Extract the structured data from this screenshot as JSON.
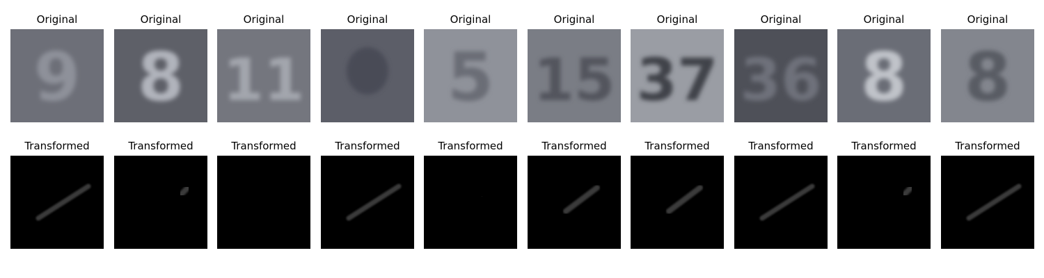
{
  "rows": [
    {
      "label": "Original",
      "panels": [
        {
          "digits": "9",
          "bg": "#6d6f78",
          "fg": "#8e919a"
        },
        {
          "digits": "8",
          "bg": "#5e6068",
          "fg": "#b1b4bc"
        },
        {
          "digits": "11",
          "bg": "#74767e",
          "fg": "#a3a6ad"
        },
        {
          "digits": "",
          "bg": "#5c5e68",
          "fg": "#4a4c56"
        },
        {
          "digits": "5",
          "bg": "#8f929a",
          "fg": "#6a6d76"
        },
        {
          "digits": "15",
          "bg": "#7a7d85",
          "fg": "#52555d"
        },
        {
          "digits": "37",
          "bg": "#9a9da4",
          "fg": "#3f4249"
        },
        {
          "digits": "36",
          "bg": "#4e5058",
          "fg": "#6e717a"
        },
        {
          "digits": "8",
          "bg": "#6a6d76",
          "fg": "#c0c3c9"
        },
        {
          "digits": "8",
          "bg": "#83868e",
          "fg": "#585b63"
        }
      ]
    },
    {
      "label": "Transformed",
      "panels": [
        {
          "stroke": "long",
          "shade": "#3a3a3a"
        },
        {
          "stroke": "short",
          "shade": "#3a3a3a"
        },
        {
          "stroke": "none",
          "shade": "#050505"
        },
        {
          "stroke": "long",
          "shade": "#3a3a3a"
        },
        {
          "stroke": "dot",
          "shade": "#101010"
        },
        {
          "stroke": "mid",
          "shade": "#3a3a3a"
        },
        {
          "stroke": "mid",
          "shade": "#3a3a3a"
        },
        {
          "stroke": "long",
          "shade": "#3a3a3a"
        },
        {
          "stroke": "short",
          "shade": "#3a3a3a"
        },
        {
          "stroke": "long",
          "shade": "#3a3a3a"
        }
      ]
    }
  ]
}
